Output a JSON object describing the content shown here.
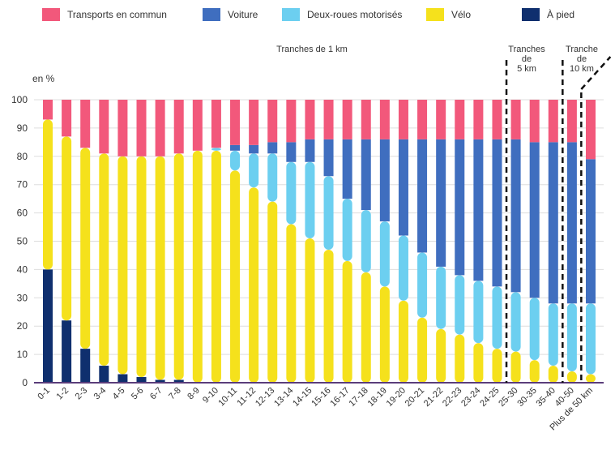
{
  "chart_data": {
    "type": "bar",
    "stacked": true,
    "ylabel": "en %",
    "ylim": [
      0,
      100
    ],
    "yticks": [
      0,
      10,
      20,
      30,
      40,
      50,
      60,
      70,
      80,
      90,
      100
    ],
    "legend_position": "top",
    "annotations": {
      "group_1km": "Tranches de 1 km",
      "group_5km": [
        "Tranches",
        "de",
        "5 km"
      ],
      "group_10km": [
        "Tranche",
        "de",
        "10 km"
      ]
    },
    "categories": [
      "0-1",
      "1-2",
      "2-3",
      "3-4",
      "4-5",
      "5-6",
      "6-7",
      "7-8",
      "8-9",
      "9-10",
      "10-11",
      "11-12",
      "12-13",
      "13-14",
      "14-15",
      "15-16",
      "16-17",
      "17-18",
      "18-19",
      "19-20",
      "20-21",
      "21-22",
      "22-23",
      "23-24",
      "24-25",
      "25-30",
      "30-35",
      "35-40",
      "40-50",
      "Plus de 50 km"
    ],
    "series": [
      {
        "name": "Transports en commun",
        "color": "#f2587b",
        "values": [
          7,
          13,
          17,
          19,
          20,
          20,
          20,
          19,
          18,
          17,
          16,
          16,
          15,
          15,
          14,
          14,
          14,
          14,
          14,
          14,
          14,
          14,
          14,
          14,
          14,
          14,
          15,
          15,
          15,
          21
        ]
      },
      {
        "name": "Voiture",
        "color": "#3f6ebf",
        "values": [
          0,
          0,
          0,
          0,
          0,
          0,
          0,
          0,
          0,
          0,
          2,
          3,
          4,
          7,
          8,
          13,
          21,
          25,
          29,
          34,
          40,
          45,
          48,
          50,
          52,
          54,
          55,
          57,
          57,
          51
        ]
      },
      {
        "name": "Deux-roues motorisés",
        "color": "#6ccff0",
        "values": [
          0,
          0,
          0,
          0,
          0,
          0,
          0,
          0,
          0,
          1,
          7,
          12,
          17,
          22,
          27,
          26,
          22,
          22,
          23,
          23,
          23,
          22,
          21,
          22,
          22,
          21,
          22,
          22,
          24,
          25
        ]
      },
      {
        "name": "Vélo",
        "color": "#f5e11c",
        "values": [
          53,
          65,
          71,
          75,
          77,
          78,
          79,
          80,
          82,
          82,
          75,
          69,
          64,
          56,
          51,
          47,
          43,
          39,
          34,
          29,
          23,
          19,
          17,
          14,
          12,
          11,
          8,
          6,
          4,
          3
        ]
      },
      {
        "name": "À pied",
        "color": "#0f2f6e",
        "values": [
          40,
          22,
          12,
          6,
          3,
          2,
          1,
          1,
          0,
          0,
          0,
          0,
          0,
          0,
          0,
          0,
          0,
          0,
          0,
          0,
          0,
          0,
          0,
          0,
          0,
          0,
          0,
          0,
          0,
          0
        ]
      }
    ]
  }
}
